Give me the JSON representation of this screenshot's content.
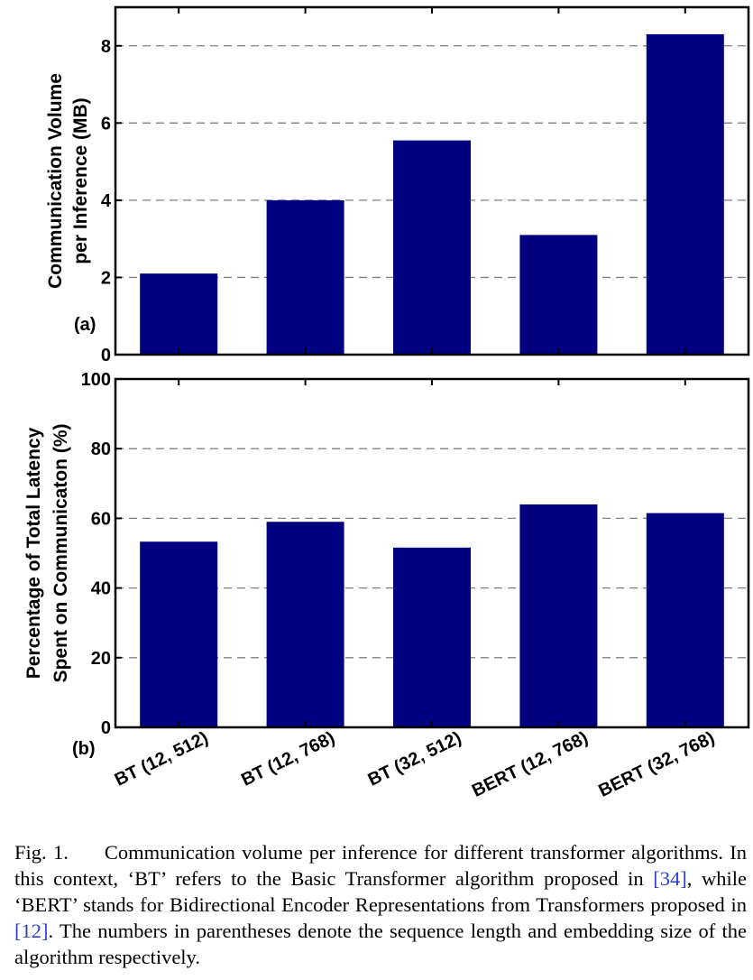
{
  "chart_data": [
    {
      "type": "bar",
      "panel_label": "(a)",
      "categories": [
        "BT (12, 512)",
        "BT (12, 768)",
        "BT (32, 512)",
        "BERT (12, 768)",
        "BERT (32, 768)"
      ],
      "values": [
        2.1,
        4.0,
        5.55,
        3.1,
        8.3
      ],
      "ylabel_line1": "Communication Volume",
      "ylabel_line2": "per Inference (MB)",
      "ylim": [
        0,
        9
      ],
      "yticks": [
        0,
        2,
        4,
        6,
        8
      ],
      "grid": "dashed horizontal",
      "bar_color": "#000080"
    },
    {
      "type": "bar",
      "panel_label": "(b)",
      "categories": [
        "BT (12, 512)",
        "BT (12, 768)",
        "BT (32, 512)",
        "BERT (12, 768)",
        "BERT (32, 768)"
      ],
      "values": [
        53.3,
        59.0,
        51.6,
        64.0,
        61.5
      ],
      "ylabel_line1": "Percentage of Total Latency",
      "ylabel_line2": "Spent on Communicaton (%)",
      "ylim": [
        0,
        100
      ],
      "yticks": [
        0,
        20,
        40,
        60,
        80,
        100
      ],
      "grid": "dashed horizontal",
      "bar_color": "#000080"
    }
  ],
  "caption": {
    "fig_no": "Fig. 1.",
    "t1": "Communication volume per inference for different transformer algorithms. In this context, ‘BT’ refers to the Basic Transformer algorithm proposed in ",
    "ref1": "[34]",
    "t2": ", while ‘BERT’ stands for Bidirectional Encoder Representations from Transformers proposed in ",
    "ref2": "[12]",
    "t3": ". The numbers in parentheses denote the sequence length and embedding size of the algorithm respectively."
  }
}
